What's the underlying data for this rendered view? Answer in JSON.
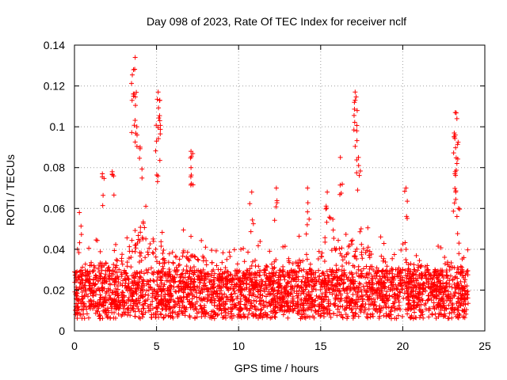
{
  "chart_data": {
    "type": "scatter",
    "title": "Day 098 of 2023, Rate Of TEC Index for receiver nclf",
    "xlabel": "GPS time / hours",
    "ylabel": "ROTI / TECUs",
    "xlim": [
      0,
      25
    ],
    "ylim": [
      0,
      0.14
    ],
    "xticks": [
      0,
      5,
      10,
      15,
      20,
      25
    ],
    "yticks": [
      0,
      0.02,
      0.04,
      0.06,
      0.08,
      0.1,
      0.12,
      0.14
    ],
    "grid": true,
    "marker": "+",
    "color": "#ff0000",
    "series": [
      {
        "name": "ROTI",
        "data_range": [
          0,
          24
        ],
        "baseline": 0.018,
        "spread": 0.012,
        "notable_points": [
          {
            "x": 0.3,
            "y": 0.058
          },
          {
            "x": 1.7,
            "y": 0.077
          },
          {
            "x": 2.3,
            "y": 0.078
          },
          {
            "x": 3.6,
            "y": 0.128
          },
          {
            "x": 3.7,
            "y": 0.134
          },
          {
            "x": 3.6,
            "y": 0.115
          },
          {
            "x": 3.8,
            "y": 0.1
          },
          {
            "x": 4.0,
            "y": 0.09
          },
          {
            "x": 5.1,
            "y": 0.117
          },
          {
            "x": 5.2,
            "y": 0.113
          },
          {
            "x": 5.2,
            "y": 0.103
          },
          {
            "x": 5.0,
            "y": 0.093
          },
          {
            "x": 7.1,
            "y": 0.088
          },
          {
            "x": 7.1,
            "y": 0.08
          },
          {
            "x": 10.8,
            "y": 0.068
          },
          {
            "x": 12.3,
            "y": 0.07
          },
          {
            "x": 14.2,
            "y": 0.07
          },
          {
            "x": 15.4,
            "y": 0.068
          },
          {
            "x": 16.2,
            "y": 0.085
          },
          {
            "x": 17.1,
            "y": 0.117
          },
          {
            "x": 17.1,
            "y": 0.113
          },
          {
            "x": 17.2,
            "y": 0.098
          },
          {
            "x": 17.3,
            "y": 0.085
          },
          {
            "x": 20.2,
            "y": 0.07
          },
          {
            "x": 23.2,
            "y": 0.107
          },
          {
            "x": 23.3,
            "y": 0.104
          },
          {
            "x": 23.2,
            "y": 0.096
          },
          {
            "x": 23.3,
            "y": 0.082
          },
          {
            "x": 23.2,
            "y": 0.078
          },
          {
            "x": 23.4,
            "y": 0.06
          }
        ],
        "activity_profile": [
          {
            "x": 0,
            "level": 0.03
          },
          {
            "x": 1,
            "level": 0.034
          },
          {
            "x": 2,
            "level": 0.034
          },
          {
            "x": 3,
            "level": 0.036
          },
          {
            "x": 4,
            "level": 0.055
          },
          {
            "x": 5,
            "level": 0.048
          },
          {
            "x": 6,
            "level": 0.036
          },
          {
            "x": 7,
            "level": 0.04
          },
          {
            "x": 8,
            "level": 0.036
          },
          {
            "x": 9,
            "level": 0.03
          },
          {
            "x": 10,
            "level": 0.028
          },
          {
            "x": 11,
            "level": 0.032
          },
          {
            "x": 12,
            "level": 0.033
          },
          {
            "x": 13,
            "level": 0.032
          },
          {
            "x": 14,
            "level": 0.036
          },
          {
            "x": 15,
            "level": 0.042
          },
          {
            "x": 16,
            "level": 0.05
          },
          {
            "x": 17,
            "level": 0.048
          },
          {
            "x": 18,
            "level": 0.04
          },
          {
            "x": 19,
            "level": 0.036
          },
          {
            "x": 20,
            "level": 0.032
          },
          {
            "x": 21,
            "level": 0.034
          },
          {
            "x": 22,
            "level": 0.03
          },
          {
            "x": 23,
            "level": 0.034
          },
          {
            "x": 24,
            "level": 0.03
          }
        ]
      }
    ]
  }
}
